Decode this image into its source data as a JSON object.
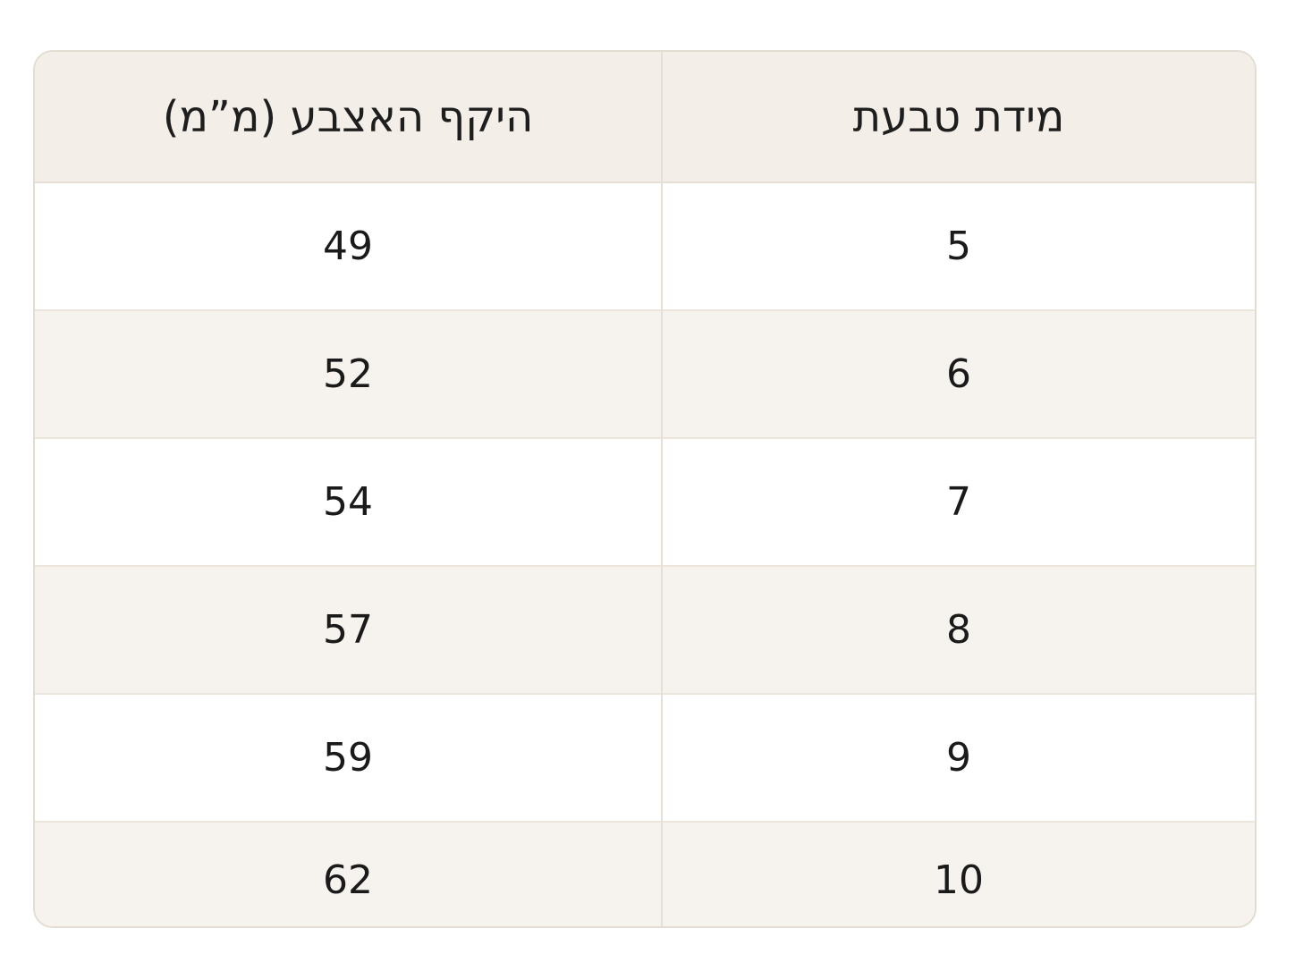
{
  "table": {
    "headers": {
      "ring_size": "מידת טבעת",
      "circumference": "היקף האצבע (מ”מ)"
    },
    "rows": [
      {
        "ring_size": "5",
        "circumference": "49"
      },
      {
        "ring_size": "6",
        "circumference": "52"
      },
      {
        "ring_size": "7",
        "circumference": "54"
      },
      {
        "ring_size": "8",
        "circumference": "57"
      },
      {
        "ring_size": "9",
        "circumference": "59"
      },
      {
        "ring_size": "10",
        "circumference": "62"
      }
    ]
  }
}
